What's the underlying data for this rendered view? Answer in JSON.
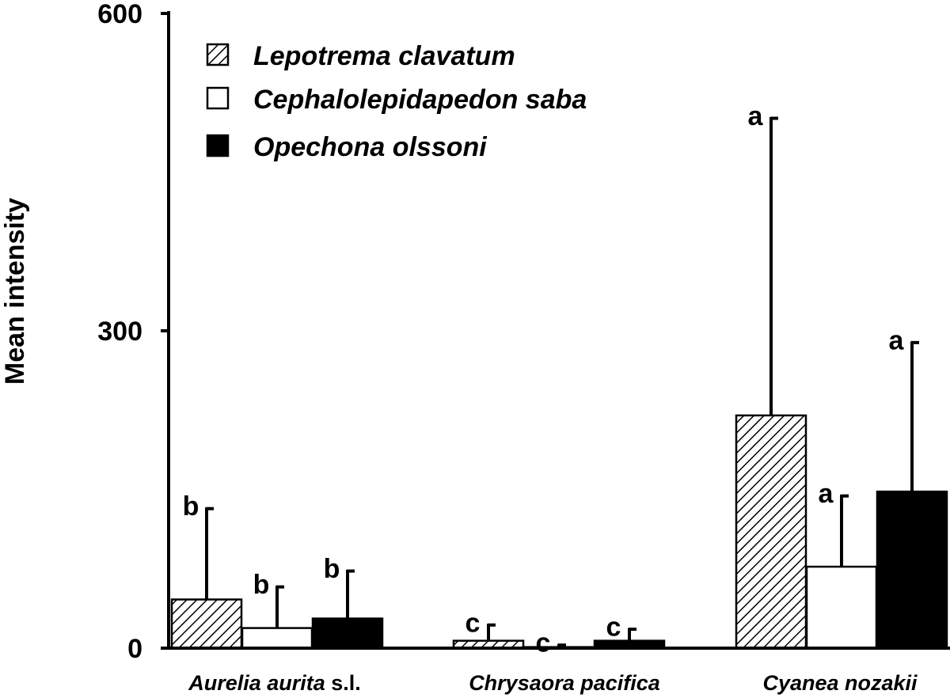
{
  "chart_data": {
    "type": "bar",
    "ylabel": "Mean intensity",
    "xlabel": "",
    "ylim": [
      0,
      600
    ],
    "yticks": [
      0,
      300,
      600
    ],
    "grid": false,
    "legend_position": "top-left",
    "categories": [
      {
        "main": "Aurelia aurita",
        "suffix": " s.l."
      },
      {
        "main": "Chrysaora pacifica",
        "suffix": ""
      },
      {
        "main": "Cyanea nozakii",
        "suffix": ""
      }
    ],
    "series": [
      {
        "name": "Lepotrema clavatum",
        "pattern": "hatched",
        "fill": "#ffffff",
        "values": [
          46,
          7,
          220
        ],
        "errors": [
          133,
          23,
          502
        ],
        "letters": [
          "b",
          "c",
          "a"
        ]
      },
      {
        "name": "Cephalolepidapedon saba",
        "pattern": "open",
        "fill": "#ffffff",
        "values": [
          19,
          1,
          77
        ],
        "errors": [
          59,
          4,
          145
        ],
        "letters": [
          "b",
          "c",
          "a"
        ]
      },
      {
        "name": "Opechona olssoni",
        "pattern": "solid",
        "fill": "#000000",
        "values": [
          28,
          7,
          148
        ],
        "errors": [
          74,
          19,
          290
        ],
        "letters": [
          "b",
          "c",
          "a"
        ]
      }
    ]
  }
}
